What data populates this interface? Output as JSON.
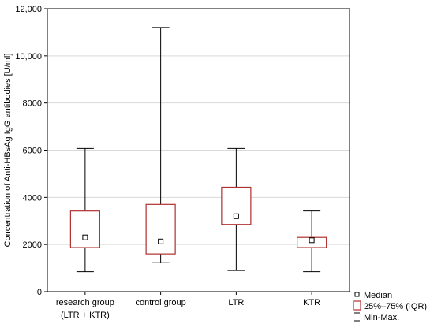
{
  "chart_data": {
    "type": "boxplot",
    "title": "",
    "xlabel": "",
    "ylabel": "Concentration of Anti-HBsAg IgG antibodies [U/ml]",
    "ylim": [
      0,
      12000
    ],
    "yticks": [
      0,
      2000,
      4000,
      6000,
      8000,
      10000,
      12000
    ],
    "ytick_labels": [
      "0",
      "2000",
      "4000",
      "6000",
      "8000",
      "10,000",
      "12,000"
    ],
    "grid": true,
    "legend_position": "bottom-right",
    "colors": {
      "box": "#b03030",
      "whisker": "#000000",
      "grid": "#d9d9d9"
    },
    "categories": [
      {
        "line1": "research group",
        "line2": "(LTR + KTR)"
      },
      {
        "line1": "control group",
        "line2": ""
      },
      {
        "line1": "LTR",
        "line2": ""
      },
      {
        "line1": "KTR",
        "line2": ""
      }
    ],
    "groups": [
      {
        "min": 850,
        "q1": 1870,
        "median": 2300,
        "q3": 3420,
        "max": 6070
      },
      {
        "min": 1230,
        "q1": 1600,
        "median": 2130,
        "q3": 3700,
        "max": 11200
      },
      {
        "min": 900,
        "q1": 2850,
        "median": 3200,
        "q3": 4430,
        "max": 6070
      },
      {
        "min": 850,
        "q1": 1870,
        "median": 2180,
        "q3": 2300,
        "max": 3420
      }
    ],
    "legend": [
      {
        "symbol": "median-square",
        "label": "Median"
      },
      {
        "symbol": "iqr-box",
        "label": "25%–75% (IQR)"
      },
      {
        "symbol": "whisker",
        "label": "Min-Max."
      }
    ]
  }
}
